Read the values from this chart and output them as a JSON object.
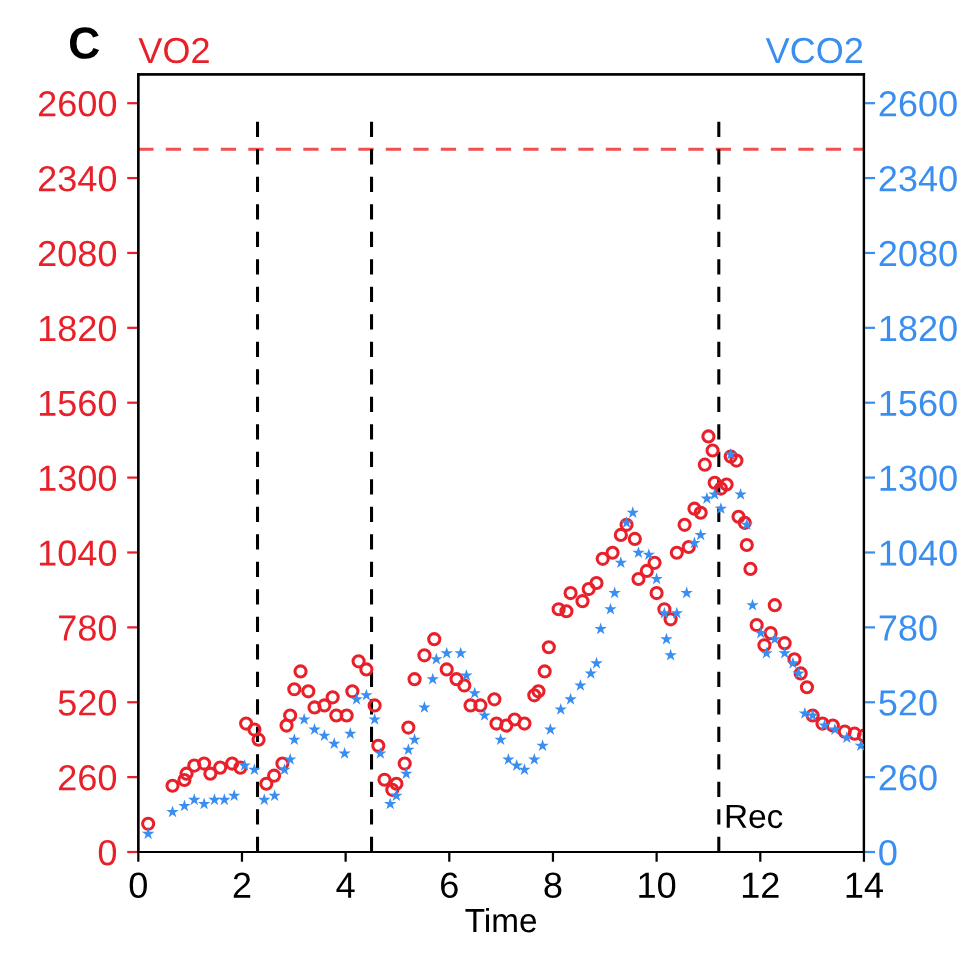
{
  "chart_data": {
    "type": "scatter",
    "xlabel": "Time",
    "ylabel": "VO2",
    "y2label": "VCO2",
    "annotations": [
      "C"
    ],
    "xlim": [
      0,
      14
    ],
    "xticks": [
      0,
      2,
      4,
      6,
      8,
      10,
      12,
      14
    ],
    "ylim": [
      0,
      2700
    ],
    "yticks": [
      0,
      260,
      520,
      780,
      1040,
      1300,
      1560,
      1820,
      2080,
      2340,
      2600
    ],
    "y2lim": [
      0,
      2700
    ],
    "y2ticks": [
      0,
      260,
      520,
      780,
      1040,
      1300,
      1560,
      1820,
      2080,
      2340,
      2600
    ],
    "grid": false,
    "legend": false,
    "ref_lines": [
      {
        "axis": "y",
        "value": 2440,
        "color": "#f05050",
        "line_style": "dashed"
      },
      {
        "axis": "x",
        "value": 2.3,
        "color": "#000000",
        "line_style": "dashed"
      },
      {
        "axis": "x",
        "value": 4.5,
        "color": "#000000",
        "line_style": "dashed"
      },
      {
        "axis": "x",
        "value": 11.2,
        "color": "#000000",
        "line_style": "dashed",
        "label": "Rec"
      }
    ],
    "series": [
      {
        "color": "#e8202a",
        "marker": "circle",
        "x": [
          0.19,
          0.66,
          0.89,
          0.93,
          1.08,
          1.27,
          1.39,
          1.58,
          1.81,
          1.97,
          2.08,
          2.24,
          2.32,
          2.47,
          2.62,
          2.78,
          2.86,
          2.93,
          3.01,
          3.13,
          3.28,
          3.4,
          3.59,
          3.75,
          3.82,
          4.02,
          4.13,
          4.25,
          4.4,
          4.56,
          4.63,
          4.75,
          4.9,
          4.98,
          5.14,
          5.21,
          5.33,
          5.52,
          5.71,
          5.95,
          6.14,
          6.29,
          6.41,
          6.6,
          6.87,
          6.91,
          7.1,
          7.26,
          7.45,
          7.64,
          7.72,
          7.84,
          7.92,
          8.11,
          8.26,
          8.34,
          8.57,
          8.69,
          8.84,
          8.96,
          9.15,
          9.31,
          9.42,
          9.58,
          9.65,
          9.81,
          9.96,
          10.0,
          10.15,
          10.27,
          10.39,
          10.54,
          10.62,
          10.73,
          10.85,
          10.93,
          11.0,
          11.08,
          11.12,
          11.24,
          11.35,
          11.43,
          11.54,
          11.58,
          11.7,
          11.74,
          11.81,
          11.93,
          12.08,
          12.2,
          12.28,
          12.47,
          12.66,
          12.78,
          12.9,
          13.01,
          13.2,
          13.4,
          13.63,
          13.82,
          14.0
        ],
        "values": [
          98,
          230,
          250,
          272,
          300,
          307,
          272,
          293,
          307,
          293,
          446,
          425,
          390,
          237,
          265,
          307,
          439,
          474,
          565,
          627,
          558,
          502,
          509,
          537,
          474,
          474,
          558,
          662,
          634,
          509,
          369,
          251,
          216,
          237,
          307,
          432,
          600,
          683,
          739,
          634,
          600,
          578,
          509,
          509,
          530,
          446,
          439,
          460,
          446,
          544,
          558,
          627,
          711,
          843,
          836,
          899,
          871,
          913,
          934,
          1018,
          1039,
          1101,
          1136,
          1087,
          948,
          976,
          1004,
          899,
          843,
          808,
          1039,
          1136,
          1059,
          1192,
          1178,
          1345,
          1443,
          1394,
          1282,
          1262,
          1276,
          1373,
          1359,
          1164,
          1143,
          1066,
          983,
          788,
          718,
          760,
          857,
          725,
          669,
          620,
          572,
          474,
          446,
          439,
          418,
          411,
          404
        ]
      },
      {
        "color": "#3a8ef0",
        "marker": "star",
        "axis": "y2",
        "x": [
          0.19,
          0.66,
          0.89,
          1.08,
          1.27,
          1.47,
          1.66,
          1.85,
          2.05,
          2.24,
          2.43,
          2.63,
          2.82,
          2.93,
          3.01,
          3.2,
          3.4,
          3.59,
          3.78,
          3.98,
          4.09,
          4.21,
          4.4,
          4.56,
          4.67,
          4.86,
          4.98,
          5.17,
          5.21,
          5.33,
          5.52,
          5.68,
          5.75,
          5.95,
          6.22,
          6.33,
          6.49,
          6.68,
          6.99,
          7.14,
          7.3,
          7.45,
          7.64,
          7.8,
          7.95,
          8.15,
          8.34,
          8.53,
          8.73,
          8.84,
          8.92,
          9.11,
          9.19,
          9.31,
          9.42,
          9.54,
          9.65,
          9.85,
          10.0,
          10.15,
          10.19,
          10.27,
          10.39,
          10.58,
          10.73,
          10.85,
          10.97,
          11.12,
          11.24,
          11.43,
          11.62,
          11.74,
          11.85,
          12.01,
          12.12,
          12.28,
          12.47,
          12.63,
          12.74,
          12.86,
          13.01,
          13.24,
          13.44,
          13.67,
          13.94
        ],
        "values": [
          63,
          139,
          160,
          181,
          167,
          181,
          181,
          195,
          300,
          286,
          181,
          195,
          286,
          321,
          390,
          460,
          425,
          404,
          376,
          342,
          411,
          530,
          544,
          460,
          342,
          167,
          195,
          272,
          355,
          390,
          502,
          600,
          669,
          690,
          690,
          613,
          551,
          474,
          390,
          321,
          300,
          286,
          321,
          369,
          425,
          495,
          530,
          578,
          620,
          655,
          774,
          843,
          899,
          1004,
          1143,
          1178,
          1039,
          1032,
          948,
          829,
          739,
          683,
          829,
          899,
          1073,
          1101,
          1227,
          1241,
          1192,
          1380,
          1241,
          1136,
          857,
          760,
          690,
          739,
          690,
          655,
          620,
          481,
          474,
          439,
          425,
          397,
          369
        ]
      }
    ]
  }
}
